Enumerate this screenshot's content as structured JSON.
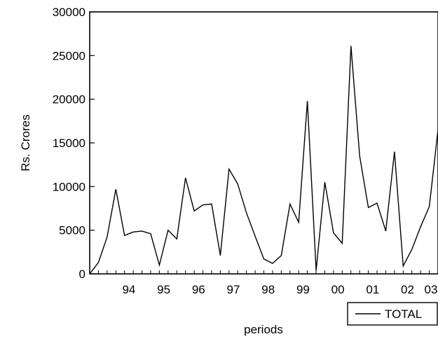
{
  "chart_data": {
    "type": "line",
    "xlabel": "periods",
    "ylabel": "Rs. Crores",
    "ylim": [
      0,
      30000
    ],
    "yticks": [
      "0",
      "5000",
      "10000",
      "15000",
      "20000",
      "25000",
      "30000"
    ],
    "xticks": [
      "94",
      "95",
      "96",
      "97",
      "98",
      "99",
      "00",
      "01",
      "02",
      "03"
    ],
    "x_start_label": "1993Q2",
    "legend": {
      "position": "bottom-right"
    },
    "series": [
      {
        "name": "TOTAL",
        "color": "#000000",
        "values": [
          0,
          1300,
          4200,
          9700,
          4400,
          4800,
          4900,
          4600,
          1000,
          5000,
          4000,
          11000,
          7200,
          7900,
          8000,
          2100,
          12000,
          10300,
          7000,
          4300,
          1700,
          1200,
          2100,
          8000,
          5900,
          19800,
          400,
          10500,
          4700,
          3500,
          26100,
          13500,
          7600,
          8100,
          4900,
          14000,
          900,
          2800,
          5400,
          7700,
          16500
        ]
      }
    ]
  }
}
